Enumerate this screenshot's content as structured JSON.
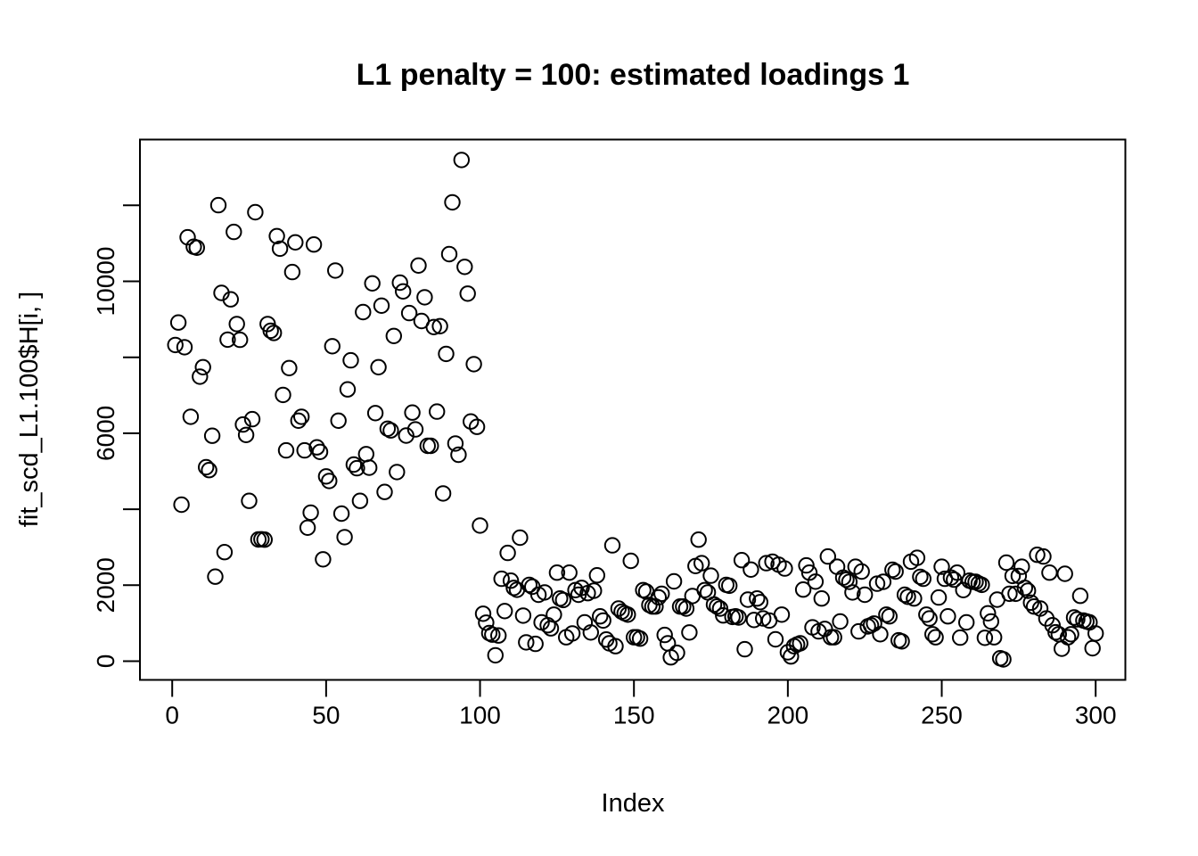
{
  "title": "L1 penalty = 100: estimated loadings 1",
  "x_axis": {
    "label": "Index",
    "ticks": [
      0,
      50,
      100,
      150,
      200,
      250,
      300
    ]
  },
  "y_axis": {
    "label": "fit_scd_L1.100$H[i, ]",
    "ticks": [
      0,
      2000,
      4000,
      6000,
      8000,
      10000,
      12000
    ],
    "labeled_ticks": [
      0,
      2000,
      6000,
      10000
    ]
  },
  "colors": {
    "background": "#ffffff",
    "foreground": "#000000"
  },
  "chart_data": {
    "type": "scatter",
    "title": "L1 penalty = 100: estimated loadings 1",
    "xlabel": "Index",
    "ylabel": "fit_scd_L1.100$H[i, ]",
    "x_definition": "Index 1..300 (one point per index)",
    "xlim": [
      -11,
      312
    ],
    "ylim": [
      -520,
      13400
    ],
    "grid": false,
    "legend": "none",
    "marker": "open-circle",
    "marker_color": "#000000",
    "description": "First ~100 indices scatter between ~2200 and ~13200; indices 101-300 scatter low between ~40 and ~3250",
    "values": [
      8325,
      8915,
      4120,
      8265,
      11160,
      6435,
      10910,
      10885,
      7490,
      7740,
      5105,
      5030,
      5935,
      2225,
      12005,
      9695,
      2870,
      8465,
      9525,
      11300,
      8875,
      8460,
      6230,
      5955,
      4220,
      6370,
      11820,
      3205,
      3210,
      3200,
      8875,
      8700,
      8640,
      11190,
      10860,
      7010,
      5550,
      7715,
      10245,
      11025,
      6330,
      6435,
      5550,
      3515,
      3910,
      10970,
      5630,
      5510,
      2680,
      4865,
      4745,
      8290,
      10285,
      6330,
      3885,
      3265,
      7155,
      7920,
      5175,
      5080,
      4220,
      9190,
      5450,
      5095,
      9945,
      6530,
      7740,
      9360,
      4455,
      6120,
      6075,
      8560,
      4980,
      9965,
      9735,
      5940,
      9165,
      6545,
      6100,
      10415,
      8955,
      9580,
      5670,
      5670,
      8795,
      6570,
      8820,
      4415,
      8090,
      10715,
      12080,
      5730,
      5435,
      13195,
      10380,
      9675,
      6310,
      7820,
      6170,
      3570,
      1250,
      1015,
      740,
      700,
      155,
      675,
      2170,
      1320,
      2850,
      2120,
      1930,
      1880,
      3250,
      1200,
      495,
      2010,
      1960,
      455,
      1750,
      1020,
      1810,
      945,
      865,
      1225,
      2330,
      1650,
      1610,
      630,
      2330,
      730,
      1870,
      1750,
      1930,
      1020,
      1790,
      755,
      1855,
      2260,
      1180,
      1070,
      570,
      470,
      3050,
      395,
      1385,
      1305,
      1260,
      1225,
      2640,
      630,
      630,
      595,
      1870,
      1830,
      1480,
      1440,
      1440,
      1680,
      1775,
      690,
      470,
      100,
      2100,
      220,
      1440,
      1440,
      1385,
      755,
      1715,
      2505,
      3200,
      2580,
      1870,
      1810,
      2250,
      1490,
      1440,
      1385,
      1205,
      2010,
      1985,
      1165,
      1180,
      1150,
      2660,
      315,
      1620,
      2410,
      1085,
      1650,
      1555,
      1125,
      2580,
      1070,
      2620,
      575,
      2540,
      1225,
      2440,
      235,
      125,
      395,
      440,
      470,
      1885,
      2520,
      2330,
      890,
      2095,
      785,
      1650,
      850,
      2755,
      630,
      630,
      2485,
      1045,
      2200,
      2145,
      2090,
      1810,
      2485,
      785,
      2360,
      1750,
      915,
      945,
      990,
      2040,
      710,
      2090,
      1225,
      1180,
      2405,
      2360,
      550,
      520,
      1750,
      1695,
      2620,
      1650,
      2720,
      2220,
      2170,
      1225,
      1125,
      710,
      630,
      1675,
      2485,
      2170,
      1180,
      2200,
      2145,
      2330,
      620,
      1870,
      1020,
      2120,
      2090,
      2090,
      2045,
      2010,
      615,
      1260,
      1045,
      630,
      1620,
      78,
      47,
      2595,
      1775,
      2245,
      1775,
      2245,
      2485,
      1930,
      1855,
      1540,
      1440,
      2800,
      1385,
      2755,
      1125,
      2330,
      945,
      760,
      710,
      329,
      2300,
      630,
      710,
      1150,
      1100,
      1720,
      1070,
      1045,
      1020,
      340,
      730
    ]
  }
}
